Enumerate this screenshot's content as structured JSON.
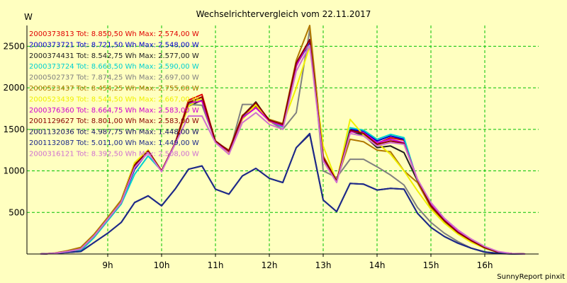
{
  "chart_data": {
    "type": "line",
    "title": "Wechselrichtervergleich vom 22.11.2017",
    "ylabel": "W",
    "footer": "SunnyReport pinxit",
    "x_ticks": [
      "9h",
      "10h",
      "11h",
      "12h",
      "13h",
      "14h",
      "15h",
      "16h"
    ],
    "xlim": [
      7.5,
      17.0
    ],
    "y_ticks": [
      500,
      1000,
      1500,
      2000,
      2500
    ],
    "ylim": [
      0,
      2750
    ],
    "grid": true,
    "legend_position": "top-left",
    "series": [
      {
        "name": "2000373813 Tot: 8.850,50 Wh Max: 2.574,00 W",
        "color": "#e00000",
        "x": [
          7.75,
          8.0,
          8.25,
          8.5,
          8.75,
          9.0,
          9.25,
          9.5,
          9.75,
          10.0,
          10.25,
          10.5,
          10.75,
          11.0,
          11.25,
          11.5,
          11.75,
          12.0,
          12.25,
          12.5,
          12.75,
          13.0,
          13.25,
          13.5,
          13.75,
          14.0,
          14.25,
          14.5,
          14.75,
          15.0,
          15.25,
          15.5,
          15.75,
          16.0,
          16.25,
          16.5,
          16.75
        ],
        "y": [
          0,
          8,
          30,
          60,
          220,
          420,
          620,
          1060,
          1230,
          1000,
          1330,
          1850,
          1920,
          1350,
          1240,
          1660,
          1800,
          1610,
          1550,
          2280,
          2570,
          1160,
          870,
          1500,
          1460,
          1330,
          1400,
          1370,
          880,
          560,
          380,
          250,
          150,
          70,
          20,
          5,
          0
        ]
      },
      {
        "name": "2000373721 Tot: 8.721,50 Wh Max: 2.548,00 W",
        "color": "#0000d0",
        "x": [
          7.75,
          8.0,
          8.25,
          8.5,
          8.75,
          9.0,
          9.25,
          9.5,
          9.75,
          10.0,
          10.25,
          10.5,
          10.75,
          11.0,
          11.25,
          11.5,
          11.75,
          12.0,
          12.25,
          12.5,
          12.75,
          13.0,
          13.25,
          13.5,
          13.75,
          14.0,
          14.25,
          14.5,
          14.75,
          15.0,
          15.25,
          15.5,
          15.75,
          16.0,
          16.25,
          16.5,
          16.75
        ],
        "y": [
          0,
          8,
          30,
          60,
          220,
          420,
          620,
          1020,
          1230,
          1000,
          1330,
          1820,
          1880,
          1350,
          1230,
          1650,
          1790,
          1600,
          1530,
          2270,
          2550,
          1150,
          870,
          1500,
          1480,
          1360,
          1420,
          1380,
          880,
          560,
          380,
          250,
          150,
          70,
          20,
          5,
          0
        ]
      },
      {
        "name": "2000374431 Tot: 8.542,75 Wh Max: 2.577,00 W",
        "color": "#202020",
        "x": [
          7.75,
          8.0,
          8.25,
          8.5,
          8.75,
          9.0,
          9.25,
          9.5,
          9.75,
          10.0,
          10.25,
          10.5,
          10.75,
          11.0,
          11.25,
          11.5,
          11.75,
          12.0,
          12.25,
          12.5,
          12.75,
          13.0,
          13.25,
          13.5,
          13.75,
          14.0,
          14.25,
          14.5,
          14.75,
          15.0,
          15.25,
          15.5,
          15.75,
          16.0,
          16.25,
          16.5,
          16.75
        ],
        "y": [
          0,
          8,
          30,
          60,
          220,
          420,
          620,
          1080,
          1240,
          1000,
          1330,
          1780,
          1850,
          1360,
          1240,
          1660,
          1830,
          1600,
          1560,
          2270,
          2580,
          1130,
          870,
          1480,
          1430,
          1280,
          1300,
          1220,
          880,
          560,
          380,
          250,
          150,
          70,
          20,
          5,
          0
        ]
      },
      {
        "name": "2000373724 Tot: 8.663,50 Wh Max: 2.590,00 W",
        "color": "#00d0d0",
        "x": [
          7.75,
          8.0,
          8.25,
          8.5,
          8.75,
          9.0,
          9.25,
          9.5,
          9.75,
          10.0,
          10.25,
          10.5,
          10.75,
          11.0,
          11.25,
          11.5,
          11.75,
          12.0,
          12.25,
          12.5,
          12.75,
          13.0,
          13.25,
          13.5,
          13.75,
          14.0,
          14.25,
          14.5,
          14.75,
          15.0,
          15.25,
          15.5,
          15.75,
          16.0,
          16.25,
          16.5,
          16.75
        ],
        "y": [
          0,
          8,
          30,
          40,
          200,
          400,
          600,
          960,
          1180,
          1000,
          1330,
          1800,
          1880,
          1350,
          1230,
          1640,
          1790,
          1600,
          1530,
          2280,
          2570,
          1150,
          880,
          1520,
          1490,
          1380,
          1440,
          1400,
          880,
          560,
          380,
          250,
          150,
          70,
          20,
          5,
          0
        ]
      },
      {
        "name": "2000502737 Tot: 7.874,25 Wh Max: 2.697,00 W",
        "color": "#808080",
        "x": [
          7.75,
          8.0,
          8.25,
          8.5,
          8.75,
          9.0,
          9.25,
          9.5,
          9.75,
          10.0,
          10.25,
          10.5,
          10.75,
          11.0,
          11.25,
          11.5,
          11.75,
          12.0,
          12.25,
          12.5,
          12.75,
          13.0,
          13.25,
          13.5,
          13.75,
          14.0,
          14.25,
          14.5,
          14.75,
          15.0,
          15.25,
          15.5,
          15.75,
          16.0,
          16.25,
          16.5,
          16.75
        ],
        "y": [
          0,
          8,
          30,
          60,
          220,
          420,
          620,
          1060,
          1230,
          1000,
          1330,
          1800,
          1790,
          1360,
          1200,
          1800,
          1800,
          1600,
          1500,
          1700,
          2700,
          1000,
          920,
          1140,
          1140,
          1050,
          950,
          830,
          560,
          380,
          250,
          150,
          70,
          20,
          5,
          0,
          0
        ]
      },
      {
        "name": "2000523437 Tot: 8.454,25 Wh Max: 2.755,00 W",
        "color": "#b07800",
        "x": [
          7.75,
          8.0,
          8.25,
          8.5,
          8.75,
          9.0,
          9.25,
          9.5,
          9.75,
          10.0,
          10.25,
          10.5,
          10.75,
          11.0,
          11.25,
          11.5,
          11.75,
          12.0,
          12.25,
          12.5,
          12.75,
          13.0,
          13.25,
          13.5,
          13.75,
          14.0,
          14.25,
          14.5,
          14.75,
          15.0,
          15.25,
          15.5,
          15.75,
          16.0,
          16.25,
          16.5,
          16.75
        ],
        "y": [
          0,
          10,
          40,
          80,
          240,
          440,
          650,
          1100,
          1250,
          1000,
          1330,
          1830,
          1880,
          1350,
          1250,
          1670,
          1780,
          1620,
          1570,
          2330,
          2750,
          1180,
          880,
          1380,
          1350,
          1250,
          1230,
          1000,
          860,
          560,
          380,
          250,
          150,
          70,
          20,
          5,
          0
        ]
      },
      {
        "name": "2000523439 Tot: 8.544,50 Wh Max: 2.667,00 W",
        "color": "#f0f000",
        "x": [
          7.75,
          8.0,
          8.25,
          8.5,
          8.75,
          9.0,
          9.25,
          9.5,
          9.75,
          10.0,
          10.25,
          10.5,
          10.75,
          11.0,
          11.25,
          11.5,
          11.75,
          12.0,
          12.25,
          12.5,
          12.75,
          13.0,
          13.25,
          13.5,
          13.75,
          14.0,
          14.25,
          14.5,
          14.75,
          15.0,
          15.25,
          15.5,
          15.75,
          16.0,
          16.25,
          16.5,
          16.75
        ],
        "y": [
          0,
          8,
          30,
          60,
          220,
          420,
          620,
          1100,
          1250,
          1000,
          1330,
          1780,
          1880,
          1340,
          1220,
          1620,
          1800,
          1590,
          1560,
          2000,
          2500,
          1300,
          870,
          1620,
          1430,
          1340,
          1200,
          1000,
          760,
          540,
          370,
          240,
          140,
          70,
          20,
          5,
          0
        ]
      },
      {
        "name": "2000376360 Tot: 8.664,75 Wh Max: 2.583,00 W",
        "color": "#d000d0",
        "x": [
          7.75,
          8.0,
          8.25,
          8.5,
          8.75,
          9.0,
          9.25,
          9.5,
          9.75,
          10.0,
          10.25,
          10.5,
          10.75,
          11.0,
          11.25,
          11.5,
          11.75,
          12.0,
          12.25,
          12.5,
          12.75,
          13.0,
          13.25,
          13.5,
          13.75,
          14.0,
          14.25,
          14.5,
          14.75,
          15.0,
          15.25,
          15.5,
          15.75,
          16.0,
          16.25,
          16.5,
          16.75
        ],
        "y": [
          0,
          8,
          30,
          60,
          220,
          420,
          620,
          1060,
          1230,
          1000,
          1330,
          1820,
          1840,
          1350,
          1230,
          1640,
          1760,
          1600,
          1540,
          2260,
          2580,
          1140,
          870,
          1470,
          1460,
          1340,
          1380,
          1340,
          900,
          600,
          410,
          270,
          160,
          80,
          25,
          5,
          0
        ]
      },
      {
        "name": "2001129627 Tot: 8.801,00 Wh Max: 2.583,00 W",
        "color": "#8b0000",
        "x": [
          7.75,
          8.0,
          8.25,
          8.5,
          8.75,
          9.0,
          9.25,
          9.5,
          9.75,
          10.0,
          10.25,
          10.5,
          10.75,
          11.0,
          11.25,
          11.5,
          11.75,
          12.0,
          12.25,
          12.5,
          12.75,
          13.0,
          13.25,
          13.5,
          13.75,
          14.0,
          14.25,
          14.5,
          14.75,
          15.0,
          15.25,
          15.5,
          15.75,
          16.0,
          16.25,
          16.5,
          16.75
        ],
        "y": [
          0,
          8,
          30,
          60,
          220,
          420,
          620,
          1070,
          1240,
          1000,
          1330,
          1820,
          1890,
          1360,
          1240,
          1660,
          1820,
          1610,
          1560,
          2300,
          2580,
          1160,
          880,
          1490,
          1450,
          1320,
          1360,
          1330,
          890,
          580,
          400,
          260,
          160,
          75,
          20,
          5,
          0
        ]
      },
      {
        "name": "2001132036 Tot: 4.987,75 Wh Max: 1.448,00 W",
        "color": "#101060",
        "x": [
          7.75,
          8.0,
          8.25,
          8.5,
          8.75,
          9.0,
          9.25,
          9.5,
          9.75,
          10.0,
          10.25,
          10.5,
          10.75,
          11.0,
          11.25,
          11.5,
          11.75,
          12.0,
          12.25,
          12.5,
          12.75,
          13.0,
          13.25,
          13.5,
          13.75,
          14.0,
          14.25,
          14.5,
          14.75,
          15.0,
          15.25,
          15.5,
          15.75,
          16.0,
          16.25,
          16.5,
          16.75
        ],
        "y": [
          0,
          8,
          20,
          30,
          140,
          250,
          380,
          620,
          700,
          580,
          780,
          1020,
          1060,
          780,
          720,
          940,
          1030,
          910,
          860,
          1280,
          1440,
          650,
          510,
          850,
          840,
          770,
          790,
          780,
          490,
          320,
          210,
          130,
          70,
          25,
          8,
          2,
          0
        ]
      },
      {
        "name": "2001132087 Tot: 5.011,00 Wh Max: 1.449,00 W",
        "color": "#1e2a8a",
        "x": [
          7.75,
          8.0,
          8.25,
          8.5,
          8.75,
          9.0,
          9.25,
          9.5,
          9.75,
          10.0,
          10.25,
          10.5,
          10.75,
          11.0,
          11.25,
          11.5,
          11.75,
          12.0,
          12.25,
          12.5,
          12.75,
          13.0,
          13.25,
          13.5,
          13.75,
          14.0,
          14.25,
          14.5,
          14.75,
          15.0,
          15.25,
          15.5,
          15.75,
          16.0,
          16.25,
          16.5,
          16.75
        ],
        "y": [
          0,
          8,
          20,
          30,
          140,
          250,
          380,
          620,
          700,
          580,
          780,
          1020,
          1060,
          780,
          720,
          940,
          1030,
          910,
          860,
          1280,
          1450,
          650,
          510,
          850,
          840,
          770,
          790,
          780,
          490,
          320,
          210,
          130,
          70,
          25,
          8,
          2,
          0
        ]
      },
      {
        "name": "2000316121 Tot: 8.392,50 Wh Max: 2.508,00 W",
        "color": "#d070d0",
        "x": [
          7.75,
          8.0,
          8.25,
          8.5,
          8.75,
          9.0,
          9.25,
          9.5,
          9.75,
          10.0,
          10.25,
          10.5,
          10.75,
          11.0,
          11.25,
          11.5,
          11.75,
          12.0,
          12.25,
          12.5,
          12.75,
          13.0,
          13.25,
          13.5,
          13.75,
          14.0,
          14.25,
          14.5,
          14.75,
          15.0,
          15.25,
          15.5,
          15.75,
          16.0,
          16.25,
          16.5,
          16.75
        ],
        "y": [
          0,
          8,
          30,
          60,
          220,
          420,
          620,
          1040,
          1220,
          990,
          1320,
          1660,
          1660,
          1340,
          1200,
          1580,
          1700,
          1560,
          1500,
          2200,
          2510,
          1120,
          860,
          1450,
          1420,
          1300,
          1340,
          1320,
          900,
          620,
          430,
          290,
          180,
          90,
          30,
          5,
          0
        ]
      }
    ]
  }
}
